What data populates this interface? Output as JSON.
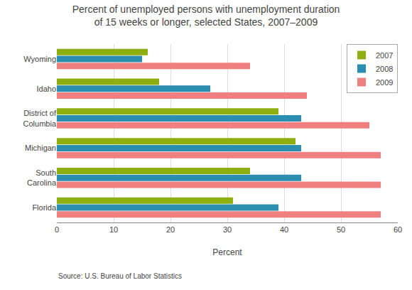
{
  "chart_data": {
    "type": "bar",
    "orientation": "horizontal",
    "title": "Percent of unemployed persons with unemployment duration\nof 15 weeks or longer, selected States, 2007–2009",
    "categories": [
      "Florida",
      "South\nCarolina",
      "Michigan",
      "District of\nColumbia",
      "Idaho",
      "Wyoming"
    ],
    "series": [
      {
        "name": "2007",
        "color": "#8DB010",
        "values": [
          31,
          34,
          42,
          39,
          18,
          16
        ]
      },
      {
        "name": "2008",
        "color": "#2B8DB0",
        "values": [
          39,
          43,
          43,
          43,
          27,
          15
        ]
      },
      {
        "name": "2009",
        "color": "#F08080",
        "values": [
          57,
          57,
          57,
          55,
          44,
          34
        ]
      }
    ],
    "xlabel": "Percent",
    "annotations": [
      "Source: U.S. Bureau of Labor Statistics"
    ],
    "xlim": [
      0,
      60
    ],
    "xticks": [
      0,
      10,
      20,
      30,
      40,
      50,
      60
    ],
    "grid": true,
    "legend": "upper right"
  }
}
